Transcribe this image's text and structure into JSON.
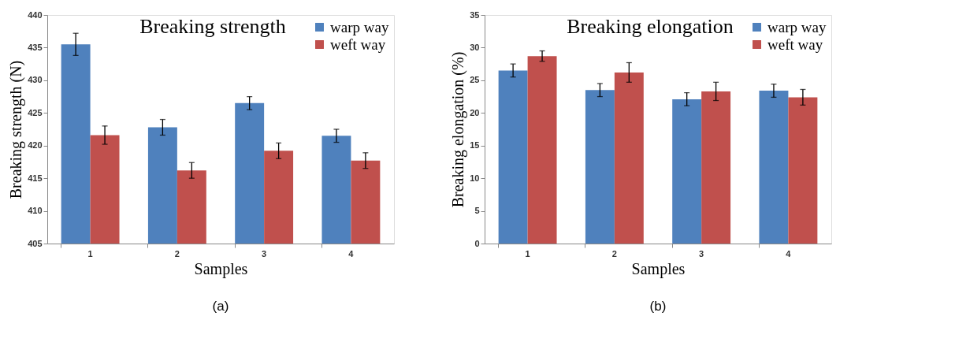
{
  "chart_data": [
    {
      "type": "bar",
      "title": "Breaking strength",
      "xlabel": "Samples",
      "ylabel": "Breaking strength (N)",
      "categories": [
        "1",
        "2",
        "3",
        "4"
      ],
      "series": [
        {
          "name": "warp way",
          "color": "#4f81bd",
          "values": [
            435.5,
            422.8,
            426.5,
            421.5
          ],
          "errors": [
            1.7,
            1.2,
            1.0,
            1.0
          ]
        },
        {
          "name": "weft way",
          "color": "#c0504d",
          "values": [
            421.6,
            416.2,
            419.2,
            417.7
          ],
          "errors": [
            1.4,
            1.2,
            1.2,
            1.2
          ]
        }
      ],
      "ylim": [
        405,
        440
      ],
      "yticks": [
        405,
        410,
        415,
        420,
        425,
        430,
        435,
        440
      ],
      "grid": false,
      "legend": "top right",
      "annotations": [
        "(a)"
      ]
    },
    {
      "type": "bar",
      "title": "Breaking elongation",
      "xlabel": "Samples",
      "ylabel": "Breaking elongation (%)",
      "categories": [
        "1",
        "2",
        "3",
        "4"
      ],
      "series": [
        {
          "name": "warp way",
          "color": "#4f81bd",
          "values": [
            26.5,
            23.5,
            22.1,
            23.4
          ],
          "errors": [
            1.0,
            1.0,
            1.0,
            1.0
          ]
        },
        {
          "name": "weft way",
          "color": "#c0504d",
          "values": [
            28.7,
            26.2,
            23.3,
            22.4
          ],
          "errors": [
            0.8,
            1.5,
            1.4,
            1.2
          ]
        }
      ],
      "ylim": [
        0,
        35
      ],
      "yticks": [
        0,
        5,
        10,
        15,
        20,
        25,
        30,
        35
      ],
      "grid": false,
      "legend": "top right",
      "annotations": [
        "(b)"
      ]
    }
  ]
}
